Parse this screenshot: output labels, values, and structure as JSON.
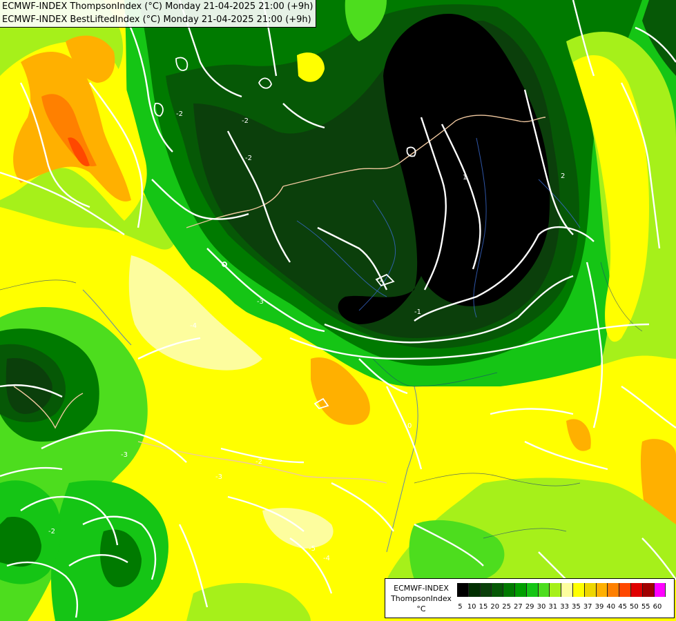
{
  "header": {
    "line1": "ECMWF-INDEX ThompsonIndex (°C) Monday 21-04-2025 21:00 (+9h)",
    "line2": "ECMWF-INDEX BestLiftedIndex (°C) Monday 21-04-2025 21:00 (+9h)"
  },
  "legend": {
    "title": [
      "ECMWF-INDEX",
      "ThompsonIndex",
      "°C"
    ],
    "levels": [
      "5",
      "10",
      "15",
      "20",
      "25",
      "27",
      "29",
      "30",
      "31",
      "33",
      "35",
      "37",
      "39",
      "40",
      "45",
      "50",
      "55",
      "60"
    ],
    "colors": [
      "#000000",
      "#002e00",
      "#0b3f0b",
      "#065806",
      "#007a00",
      "#009e00",
      "#15c515",
      "#4ddd1e",
      "#a6f01a",
      "#fdfd9e",
      "#ffff00",
      "#eed600",
      "#ffb000",
      "#ff8000",
      "#ff4800",
      "#e00000",
      "#a00000",
      "#ff00ff",
      "#aa00ff",
      "#6a00ff",
      "#0000ff"
    ]
  },
  "map": {
    "contour_labels": [
      "-2",
      "-2",
      "-1",
      "-1",
      "-2",
      "-3",
      "-4",
      "-3",
      "-2",
      "-3",
      "-4",
      "-5",
      "-2",
      "0",
      "1",
      "2"
    ],
    "colors": {
      "black": "#000000",
      "dkgreen": "#0b3f0b",
      "green1": "#065806",
      "green2": "#007a00",
      "green3": "#15c515",
      "green4": "#4ddd1e",
      "lime": "#a6f01a",
      "cream": "#fdfd9e",
      "yellow": "#ffff00",
      "gold": "#eed600",
      "orange": "#ffb000",
      "dkorange": "#ff8000",
      "red": "#ff4800",
      "contour": "#ffffff",
      "border": "#f0c8a0",
      "river": "#3a6ad0"
    }
  }
}
